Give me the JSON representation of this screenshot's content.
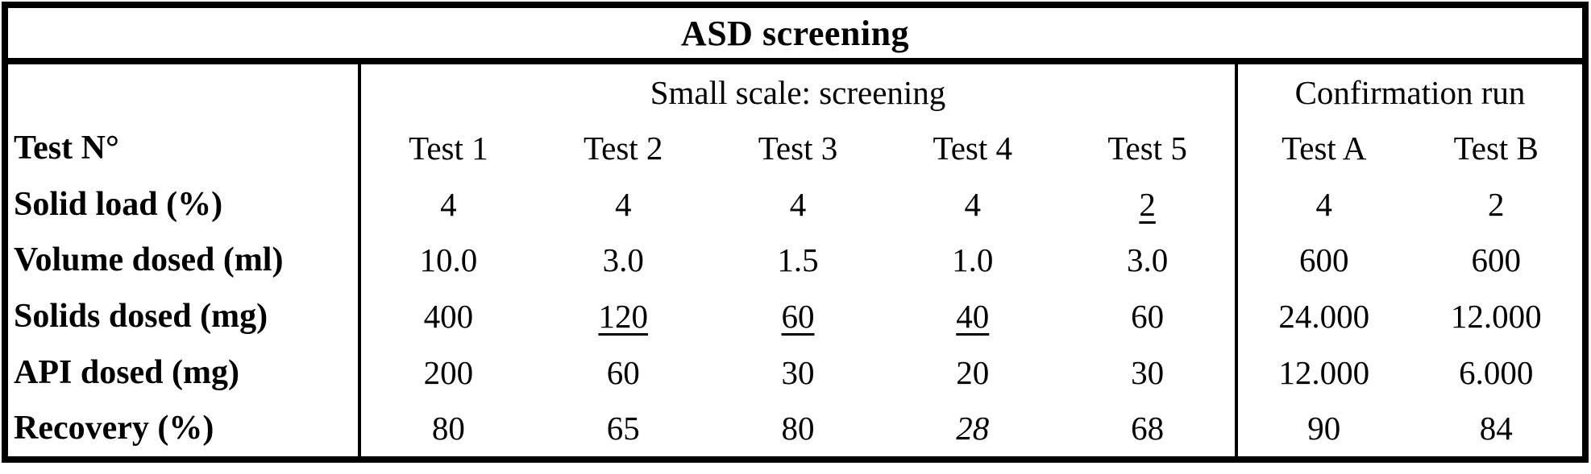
{
  "table": {
    "title": "ASD screening",
    "group_headers": [
      {
        "label": "Small scale: screening"
      },
      {
        "label": "Confirmation run"
      }
    ],
    "header_row_label": "Test N°",
    "col_headers": [
      "Test 1",
      "Test 2",
      "Test 3",
      "Test 4",
      "Test 5"
    ],
    "conf_col_headers": [
      "Test A",
      "Test B"
    ],
    "rows": [
      {
        "label": "Solid load (%)",
        "small": [
          "4",
          "4",
          "4",
          "4",
          "2"
        ],
        "conf": [
          "4",
          "2"
        ]
      },
      {
        "label": "Volume dosed (ml)",
        "small": [
          "10.0",
          "3.0",
          "1.5",
          "1.0",
          "3.0"
        ],
        "conf": [
          "600",
          "600"
        ]
      },
      {
        "label": "Solids dosed (mg)",
        "small": [
          "400",
          "120",
          "60",
          "40",
          "60"
        ],
        "conf": [
          "24.000",
          "12.000"
        ]
      },
      {
        "label": "API dosed (mg)",
        "small": [
          "200",
          "60",
          "30",
          "20",
          "30"
        ],
        "conf": [
          "12.000",
          "6.000"
        ]
      },
      {
        "label": "Recovery (%)",
        "small": [
          "80",
          "65",
          "80",
          "28",
          "68"
        ],
        "conf": [
          "90",
          "84"
        ]
      }
    ]
  }
}
